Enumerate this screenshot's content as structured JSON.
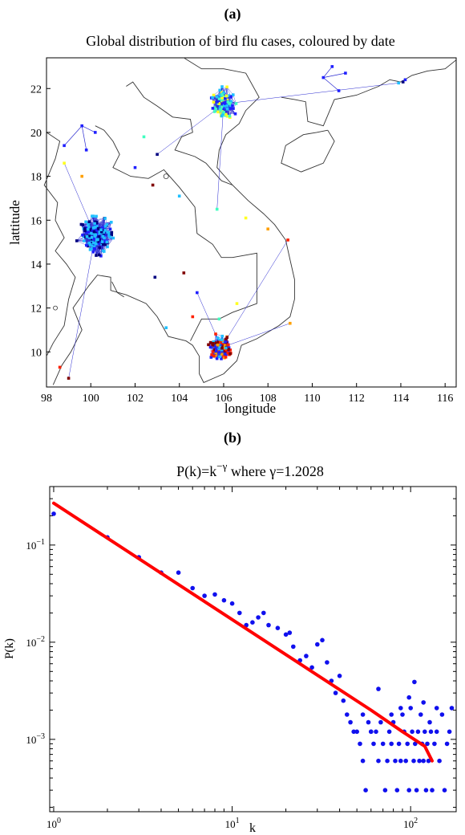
{
  "figure": {
    "panel_a_label": "(a)",
    "panel_b_label": "(b)"
  },
  "colors": {
    "edge": "#2a2ad0",
    "outline": "#333333",
    "fit": "#ff0000",
    "points": "#1010ee",
    "node_palette": [
      "#000080",
      "#2020ff",
      "#20c0ff",
      "#40ffc0",
      "#ffff20",
      "#ffa000",
      "#ff2000",
      "#800000"
    ]
  },
  "chart_data": [
    {
      "type": "scatter",
      "title": "Global distribution of bird flu cases, coloured by date",
      "xlabel": "longitude",
      "ylabel": "lattitude",
      "xlim": [
        98,
        116.5
      ],
      "ylim": [
        8.4,
        23.4
      ],
      "xticks": [
        98,
        100,
        102,
        104,
        106,
        108,
        110,
        112,
        114,
        116
      ],
      "yticks": [
        10,
        12,
        14,
        16,
        18,
        20,
        22
      ],
      "clusters": [
        {
          "name": "north",
          "center": [
            106.0,
            21.3
          ],
          "spread": [
            0.75,
            1.0
          ],
          "count": 90,
          "colors": [
            "#2020ff",
            "#20c0ff",
            "#40ffc0",
            "#ffff20"
          ]
        },
        {
          "name": "central",
          "center": [
            100.2,
            15.3
          ],
          "spread": [
            1.0,
            1.1
          ],
          "count": 140,
          "colors": [
            "#2020ff",
            "#20c0ff",
            "#20c0ff",
            "#000080"
          ]
        },
        {
          "name": "south",
          "center": [
            105.9,
            10.2
          ],
          "spread": [
            0.8,
            0.7
          ],
          "count": 90,
          "colors": [
            "#2020ff",
            "#20c0ff",
            "#ff2000",
            "#800000",
            "#ffa000"
          ]
        }
      ],
      "isolated_points": [
        [
          103.0,
          19.0
        ],
        [
          102.0,
          18.4
        ],
        [
          104.0,
          17.1
        ],
        [
          105.7,
          16.5
        ],
        [
          107.0,
          16.1
        ],
        [
          108.0,
          15.6
        ],
        [
          108.9,
          15.1
        ],
        [
          104.2,
          13.6
        ],
        [
          102.9,
          13.4
        ],
        [
          104.8,
          12.7
        ],
        [
          103.4,
          11.1
        ],
        [
          102.4,
          19.8
        ],
        [
          98.8,
          18.6
        ],
        [
          99.6,
          18.0
        ],
        [
          98.6,
          9.3
        ],
        [
          99.0,
          8.8
        ],
        [
          114.1,
          22.3
        ],
        [
          114.2,
          22.4
        ],
        [
          113.9,
          22.25
        ],
        [
          105.8,
          11.5
        ],
        [
          106.6,
          12.2
        ],
        [
          109.0,
          11.3
        ],
        [
          104.6,
          11.6
        ],
        [
          102.8,
          17.6
        ]
      ]
    },
    {
      "type": "scatter",
      "title": "P(k)=k^{-γ} where γ=1.2028",
      "title_main": "P(k)=k",
      "title_sup": "−γ",
      "title_rest": " where γ=1.2028",
      "xlabel": "k",
      "ylabel": "P(k)",
      "xscale": "log",
      "yscale": "log",
      "xlim": [
        0.95,
        180
      ],
      "ylim": [
        0.00018,
        0.4
      ],
      "xticks": [
        1,
        10,
        100
      ],
      "xtick_base": "10",
      "xtick_exps": [
        "0",
        "1",
        "2"
      ],
      "yticks": [
        0.001,
        0.01,
        0.1
      ],
      "ytick_base": "10",
      "ytick_exps": [
        "−3",
        "−2",
        "−1"
      ],
      "gamma": 1.2028,
      "points": [
        [
          1,
          0.21
        ],
        [
          2,
          0.12
        ],
        [
          3,
          0.075
        ],
        [
          4,
          0.052
        ],
        [
          5,
          0.052
        ],
        [
          6,
          0.036
        ],
        [
          7,
          0.03
        ],
        [
          8,
          0.031
        ],
        [
          9,
          0.027
        ],
        [
          10,
          0.025
        ],
        [
          11,
          0.02
        ],
        [
          12,
          0.015
        ],
        [
          13,
          0.016
        ],
        [
          14,
          0.018
        ],
        [
          15,
          0.02
        ],
        [
          16,
          0.015
        ],
        [
          18,
          0.014
        ],
        [
          20,
          0.012
        ],
        [
          21,
          0.0125
        ],
        [
          22,
          0.009
        ],
        [
          24,
          0.0065
        ],
        [
          26,
          0.0072
        ],
        [
          28,
          0.0055
        ],
        [
          30,
          0.0095
        ],
        [
          32,
          0.0105
        ],
        [
          34,
          0.0062
        ],
        [
          36,
          0.004
        ],
        [
          38,
          0.003
        ],
        [
          40,
          0.0045
        ],
        [
          42,
          0.0025
        ],
        [
          44,
          0.0018
        ],
        [
          46,
          0.0015
        ],
        [
          48,
          0.0012
        ],
        [
          50,
          0.0012
        ],
        [
          52,
          0.0009
        ],
        [
          54,
          0.0006
        ],
        [
          56,
          0.0003
        ],
        [
          58,
          0.0015
        ],
        [
          60,
          0.0012
        ],
        [
          62,
          0.0009
        ],
        [
          64,
          0.0012
        ],
        [
          66,
          0.0006
        ],
        [
          68,
          0.0015
        ],
        [
          70,
          0.0009
        ],
        [
          72,
          0.0003
        ],
        [
          74,
          0.0006
        ],
        [
          76,
          0.0012
        ],
        [
          78,
          0.0009
        ],
        [
          80,
          0.0015
        ],
        [
          82,
          0.0006
        ],
        [
          84,
          0.0003
        ],
        [
          86,
          0.0009
        ],
        [
          88,
          0.0006
        ],
        [
          90,
          0.0018
        ],
        [
          92,
          0.0012
        ],
        [
          94,
          0.0006
        ],
        [
          96,
          0.0009
        ],
        [
          98,
          0.0003
        ],
        [
          100,
          0.0021
        ],
        [
          102,
          0.0012
        ],
        [
          104,
          0.0006
        ],
        [
          106,
          0.0009
        ],
        [
          108,
          0.0003
        ],
        [
          110,
          0.0012
        ],
        [
          112,
          0.0006
        ],
        [
          114,
          0.0018
        ],
        [
          116,
          0.0009
        ],
        [
          118,
          0.0006
        ],
        [
          120,
          0.0012
        ],
        [
          122,
          0.0003
        ],
        [
          124,
          0.0009
        ],
        [
          126,
          0.0006
        ],
        [
          128,
          0.0015
        ],
        [
          130,
          0.0012
        ],
        [
          132,
          0.0003
        ],
        [
          136,
          0.0009
        ],
        [
          140,
          0.0012
        ],
        [
          145,
          0.0006
        ],
        [
          150,
          0.0018
        ],
        [
          155,
          0.0003
        ],
        [
          160,
          0.0009
        ],
        [
          165,
          0.0012
        ],
        [
          170,
          0.0021
        ],
        [
          105,
          0.0039
        ],
        [
          66,
          0.0033
        ],
        [
          98,
          0.0027
        ],
        [
          118,
          0.0024
        ],
        [
          140,
          0.0021
        ],
        [
          88,
          0.0021
        ],
        [
          78,
          0.0018
        ],
        [
          60,
          0.0012
        ],
        [
          54,
          0.0018
        ]
      ],
      "fit_line": [
        [
          1,
          0.27
        ],
        [
          60,
          0.002
        ],
        [
          90,
          0.0012
        ],
        [
          120,
          0.00085
        ],
        [
          132,
          0.0006
        ]
      ]
    }
  ]
}
